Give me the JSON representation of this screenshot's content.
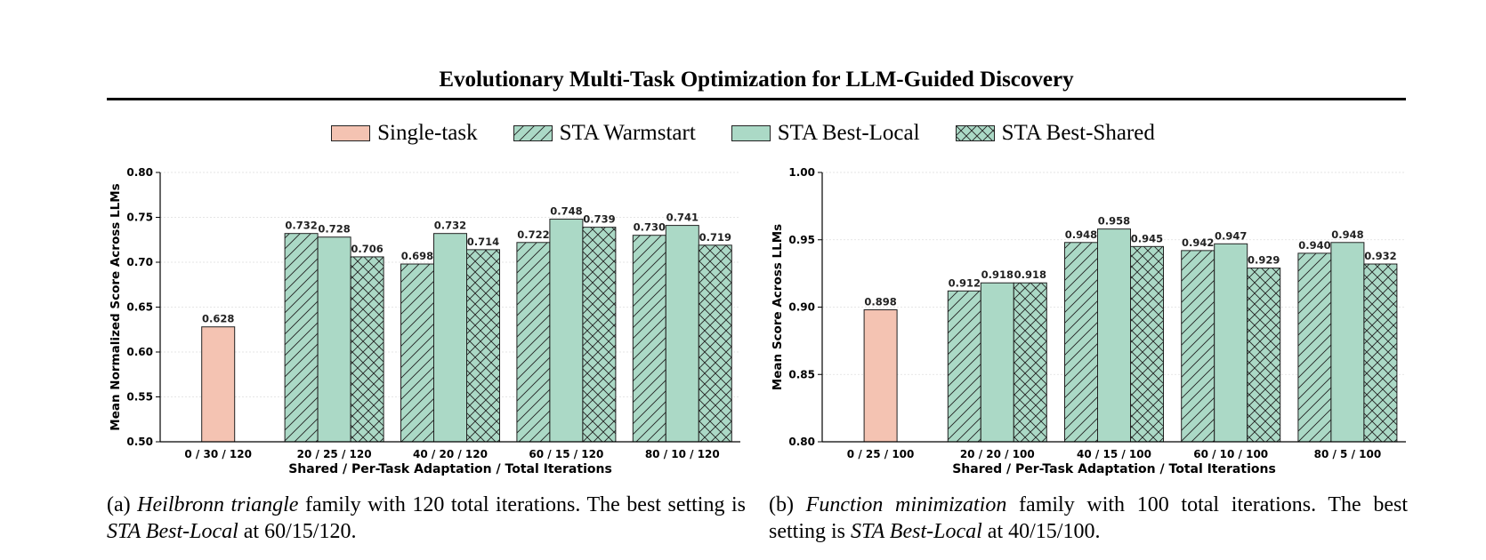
{
  "figure": {
    "title": "Evolutionary Multi-Task Optimization for LLM-Guided Discovery",
    "colors": {
      "single": "#f4c3b2",
      "sta": "#abd9c6",
      "edge": "#222222"
    }
  },
  "legend": [
    {
      "label": "Single-task",
      "pattern": "none",
      "color": "#f4c3b2"
    },
    {
      "label": "STA Warmstart",
      "pattern": "diagonal",
      "color": "#abd9c6"
    },
    {
      "label": "STA Best-Local",
      "pattern": "none",
      "color": "#abd9c6"
    },
    {
      "label": "STA Best-Shared",
      "pattern": "crosshatch",
      "color": "#abd9c6"
    }
  ],
  "chart_data": [
    {
      "type": "bar",
      "xlabel": "Shared / Per-Task Adaptation / Total Iterations",
      "ylabel": "Mean Normalized Score Across LLMs",
      "ylim": [
        0.5,
        0.8
      ],
      "yticks": [
        0.5,
        0.55,
        0.6,
        0.65,
        0.7,
        0.75,
        0.8
      ],
      "ytick_labels": [
        "0.50",
        "0.55",
        "0.60",
        "0.65",
        "0.70",
        "0.75",
        "0.80"
      ],
      "grid": true,
      "categories": [
        "0 / 30 / 120",
        "20 / 25 / 120",
        "40 / 20 / 120",
        "60 / 15 / 120",
        "80 / 10 / 120"
      ],
      "series": [
        {
          "name": "Single-task",
          "values": [
            0.628,
            null,
            null,
            null,
            null
          ],
          "labels": [
            "0.628",
            null,
            null,
            null,
            null
          ]
        },
        {
          "name": "STA Warmstart",
          "values": [
            null,
            0.732,
            0.698,
            0.722,
            0.73
          ],
          "labels": [
            null,
            "0.732",
            "0.698",
            "0.722",
            "0.730"
          ]
        },
        {
          "name": "STA Best-Local",
          "values": [
            null,
            0.728,
            0.732,
            0.748,
            0.741
          ],
          "labels": [
            null,
            "0.728",
            "0.732",
            "0.748",
            "0.741"
          ]
        },
        {
          "name": "STA Best-Shared",
          "values": [
            null,
            0.706,
            0.714,
            0.739,
            0.719
          ],
          "labels": [
            null,
            "0.706",
            "0.714",
            "0.739",
            "0.719"
          ]
        }
      ]
    },
    {
      "type": "bar",
      "xlabel": "Shared / Per-Task Adaptation / Total Iterations",
      "ylabel": "Mean Score Across LLMs",
      "ylim": [
        0.8,
        1.0
      ],
      "yticks": [
        0.8,
        0.85,
        0.9,
        0.95,
        1.0
      ],
      "ytick_labels": [
        "0.80",
        "0.85",
        "0.90",
        "0.95",
        "1.00"
      ],
      "grid": true,
      "categories": [
        "0 / 25 / 100",
        "20 / 20 / 100",
        "40 / 15 / 100",
        "60 / 10 / 100",
        "80 / 5 / 100"
      ],
      "series": [
        {
          "name": "Single-task",
          "values": [
            0.898,
            null,
            null,
            null,
            null
          ],
          "labels": [
            "0.898",
            null,
            null,
            null,
            null
          ]
        },
        {
          "name": "STA Warmstart",
          "values": [
            null,
            0.912,
            0.948,
            0.942,
            0.94
          ],
          "labels": [
            null,
            "0.912",
            "0.948",
            "0.942",
            "0.940"
          ]
        },
        {
          "name": "STA Best-Local",
          "values": [
            null,
            0.918,
            0.958,
            0.947,
            0.948
          ],
          "labels": [
            null,
            "0.918",
            "0.958",
            "0.947",
            "0.948"
          ]
        },
        {
          "name": "STA Best-Shared",
          "values": [
            null,
            0.918,
            0.945,
            0.929,
            0.932
          ],
          "labels": [
            null,
            "0.918",
            "0.945",
            "0.929",
            "0.932"
          ]
        }
      ]
    }
  ],
  "captions": [
    {
      "prefix": "(a) ",
      "italic1": "Heilbronn triangle",
      "mid": " family with 120 total iterations.  The best setting is ",
      "italic2": "STA Best-Local",
      "suffix": " at 60/15/120."
    },
    {
      "prefix": "(b) ",
      "italic1": "Function minimization",
      "mid": " family with 100 total iterations. The best setting is ",
      "italic2": "STA Best-Local",
      "suffix": " at 40/15/100."
    }
  ]
}
